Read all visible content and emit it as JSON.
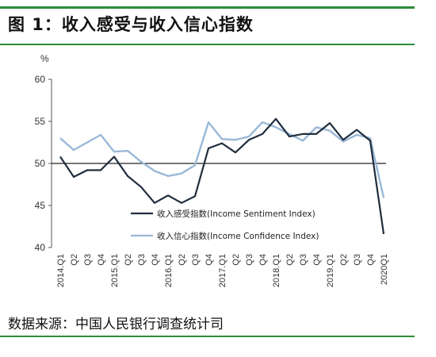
{
  "header": {
    "title": "图 1：收入感受与收入信心指数"
  },
  "footer": {
    "source": "数据来源：中国人民银行调查统计司"
  },
  "colors": {
    "rule": "#2e8b3a",
    "sentiment": "#1f2d3d",
    "confidence": "#9ab8d8"
  },
  "chart_data": {
    "type": "line",
    "ylabel": "%",
    "ylim": [
      40,
      60
    ],
    "yticks": [
      40,
      45,
      50,
      55,
      60
    ],
    "baseline": 50,
    "grid": false,
    "legend_position": "bottom-center",
    "x": [
      "2014.Q1",
      "Q2",
      "Q3",
      "Q4",
      "2015.Q1",
      "Q2",
      "Q3",
      "Q4",
      "2016.Q1",
      "Q2",
      "Q3",
      "Q4",
      "2017.Q1",
      "Q2",
      "Q3",
      "Q4",
      "2018.Q1",
      "Q2",
      "Q3",
      "Q4",
      "2019.Q1",
      "Q2",
      "Q3",
      "Q4",
      "2020Q1"
    ],
    "series": [
      {
        "name": "收入感受指数(Income Sentiment Index)",
        "values": [
          50.8,
          48.4,
          49.2,
          49.2,
          50.8,
          48.5,
          47.2,
          45.3,
          46.2,
          45.3,
          46.1,
          51.8,
          52.4,
          51.3,
          52.8,
          53.5,
          55.3,
          53.2,
          53.5,
          53.5,
          54.8,
          52.8,
          54.0,
          52.7,
          41.6
        ]
      },
      {
        "name": "收入信心指数(Income Confidence Index)",
        "values": [
          53.0,
          51.6,
          52.5,
          53.4,
          51.4,
          51.5,
          50.2,
          49.1,
          48.5,
          48.8,
          49.8,
          54.9,
          52.9,
          52.8,
          53.2,
          54.9,
          54.3,
          53.5,
          52.7,
          54.3,
          53.9,
          52.6,
          53.4,
          53.0,
          45.9
        ]
      }
    ]
  }
}
